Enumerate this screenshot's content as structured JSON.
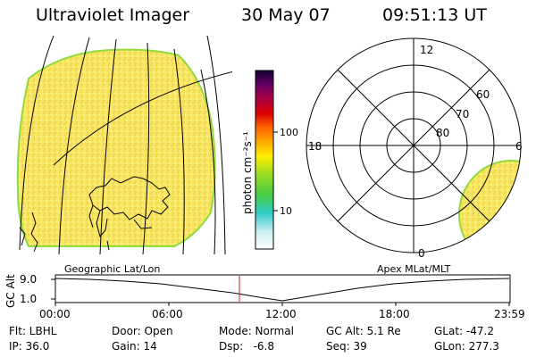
{
  "header": {
    "title": "Ultraviolet Imager",
    "date": "30 May 07",
    "time": "09:51:13 UT"
  },
  "colorbar": {
    "label": "photon cm⁻²s⁻¹",
    "ticks": [
      "100",
      "10"
    ]
  },
  "polar": {
    "mlt_labels": [
      "12",
      "18",
      "6",
      "0"
    ],
    "lat_labels": [
      "60",
      "70",
      "80"
    ]
  },
  "projection": {
    "left": "Geographic Lat/Lon",
    "right": "Apex MLat/MLT"
  },
  "altitude_plot": {
    "ylabel": "GC Alt",
    "y_ticks": [
      "9.0",
      "1.0"
    ],
    "x_ticks": [
      "00:00",
      "06:00",
      "12:00",
      "18:00",
      "23:59"
    ]
  },
  "footer": {
    "row1": [
      "Flt: LBHL",
      "Door: Open",
      "Mode: Normal",
      "GC Alt: 5.1 Re",
      "GLat: -47.2"
    ],
    "row2": [
      "IP: 36.0",
      "Gain: 14",
      "Dsp:   -6.8",
      "Seq: 39",
      "GLon: 277.3"
    ]
  },
  "colors": {
    "emission": "#f4e35a",
    "emission_edge": "#8fdb3c",
    "marker": "#dd2222"
  }
}
